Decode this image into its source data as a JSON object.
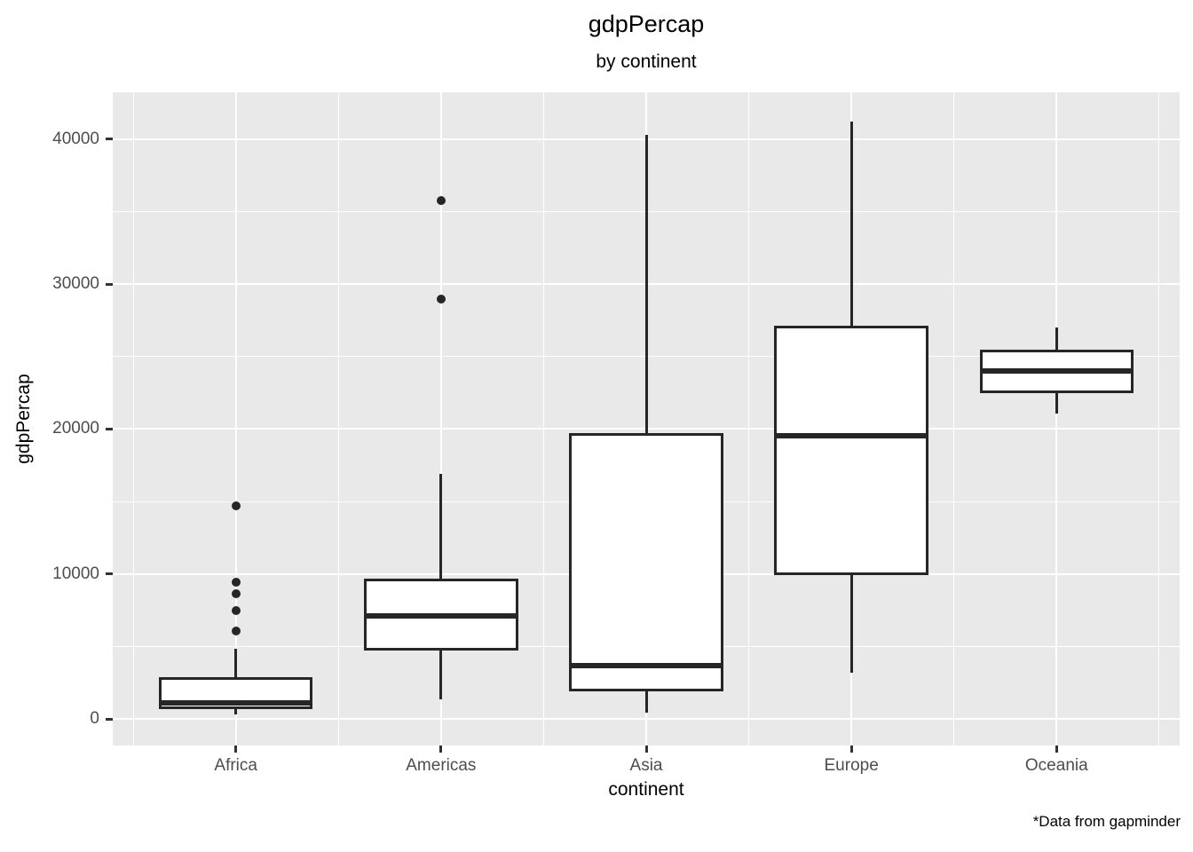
{
  "page": {
    "title": "gdpPercap",
    "subtitle": "by continent",
    "caption": "*Data from gapminder"
  },
  "chart_data": {
    "type": "boxplot",
    "title": "gdpPercap",
    "subtitle": "by continent",
    "caption": "*Data from gapminder",
    "xlabel": "continent",
    "ylabel": "gdpPercap",
    "categories": [
      "Africa",
      "Americas",
      "Asia",
      "Europe",
      "Oceania"
    ],
    "x_tick_labels": [
      "Africa",
      "Americas",
      "Asia",
      "Europe",
      "Oceania"
    ],
    "y_ticks": [
      0,
      10000,
      20000,
      30000,
      40000
    ],
    "y_tick_labels": [
      "0",
      "10000",
      "20000",
      "30000",
      "40000"
    ],
    "y_minor_ticks": [
      5000,
      15000,
      25000,
      35000
    ],
    "ylim": [
      -1837,
      43233
    ],
    "grid": true,
    "legend": "none",
    "series": [
      {
        "category": "Africa",
        "whisker_low": 300,
        "q1": 700,
        "median": 1100,
        "q3": 2850,
        "whisker_high": 4850,
        "outliers": [
          6050,
          7450,
          8650,
          9450,
          14700
        ]
      },
      {
        "category": "Americas",
        "whisker_low": 1350,
        "q1": 4700,
        "median": 7100,
        "q3": 9700,
        "whisker_high": 16900,
        "outliers": [
          28950,
          35750
        ]
      },
      {
        "category": "Asia",
        "whisker_low": 400,
        "q1": 1900,
        "median": 3650,
        "q3": 19700,
        "whisker_high": 40300,
        "outliers": []
      },
      {
        "category": "Europe",
        "whisker_low": 3200,
        "q1": 9950,
        "median": 19550,
        "q3": 27150,
        "whisker_high": 41200,
        "outliers": []
      },
      {
        "category": "Oceania",
        "whisker_low": 21050,
        "q1": 22500,
        "median": 24000,
        "q3": 25500,
        "whisker_high": 27000,
        "outliers": []
      }
    ],
    "colors": {
      "panel_bg": "#E9E9E9",
      "grid": "#FFFFFF",
      "box_stroke": "#262626",
      "box_fill": "#FFFFFF",
      "axis_text": "#4D4D4D",
      "tick_mark": "#333333",
      "title_text": "#000000"
    }
  }
}
